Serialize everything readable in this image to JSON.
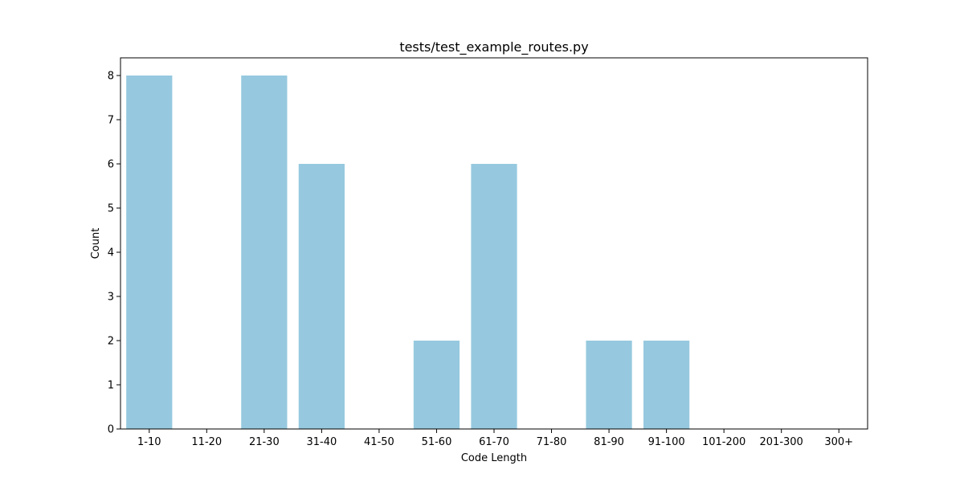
{
  "chart_data": {
    "type": "bar",
    "title": "tests/test_example_routes.py",
    "xlabel": "Code Length",
    "ylabel": "Count",
    "categories": [
      "1-10",
      "11-20",
      "21-30",
      "31-40",
      "41-50",
      "51-60",
      "61-70",
      "71-80",
      "81-90",
      "91-100",
      "101-200",
      "201-300",
      "300+"
    ],
    "values": [
      8,
      0,
      8,
      6,
      0,
      2,
      6,
      0,
      2,
      2,
      0,
      0,
      0
    ],
    "ylim": [
      0,
      8.4
    ],
    "yticks": [
      0,
      1,
      2,
      3,
      4,
      5,
      6,
      7,
      8
    ],
    "grid": false,
    "bar_color": "#96c9df"
  }
}
